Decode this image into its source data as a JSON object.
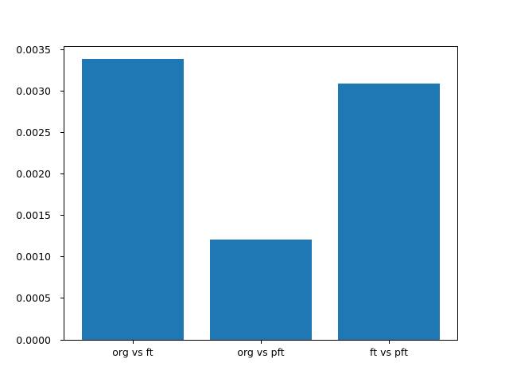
{
  "figure": {
    "background": "#ffffff"
  },
  "chart_data": {
    "type": "bar",
    "categories": [
      "org vs ft",
      "org vs pft",
      "ft vs pft"
    ],
    "values": [
      0.00339,
      0.00121,
      0.00309
    ],
    "title": "",
    "xlabel": "",
    "ylabel": "",
    "ylim": [
      0,
      0.003542
    ],
    "xlim": [
      -0.54,
      2.54
    ],
    "yticks": [
      0.0,
      0.0005,
      0.001,
      0.0015,
      0.002,
      0.0025,
      0.003,
      0.0035
    ],
    "ytick_decimals": 4,
    "bar_width": 0.8,
    "bar_color": "#1f77b4",
    "axis_color": "#000000",
    "text_color": "#000000",
    "grid": false,
    "legend": null
  }
}
